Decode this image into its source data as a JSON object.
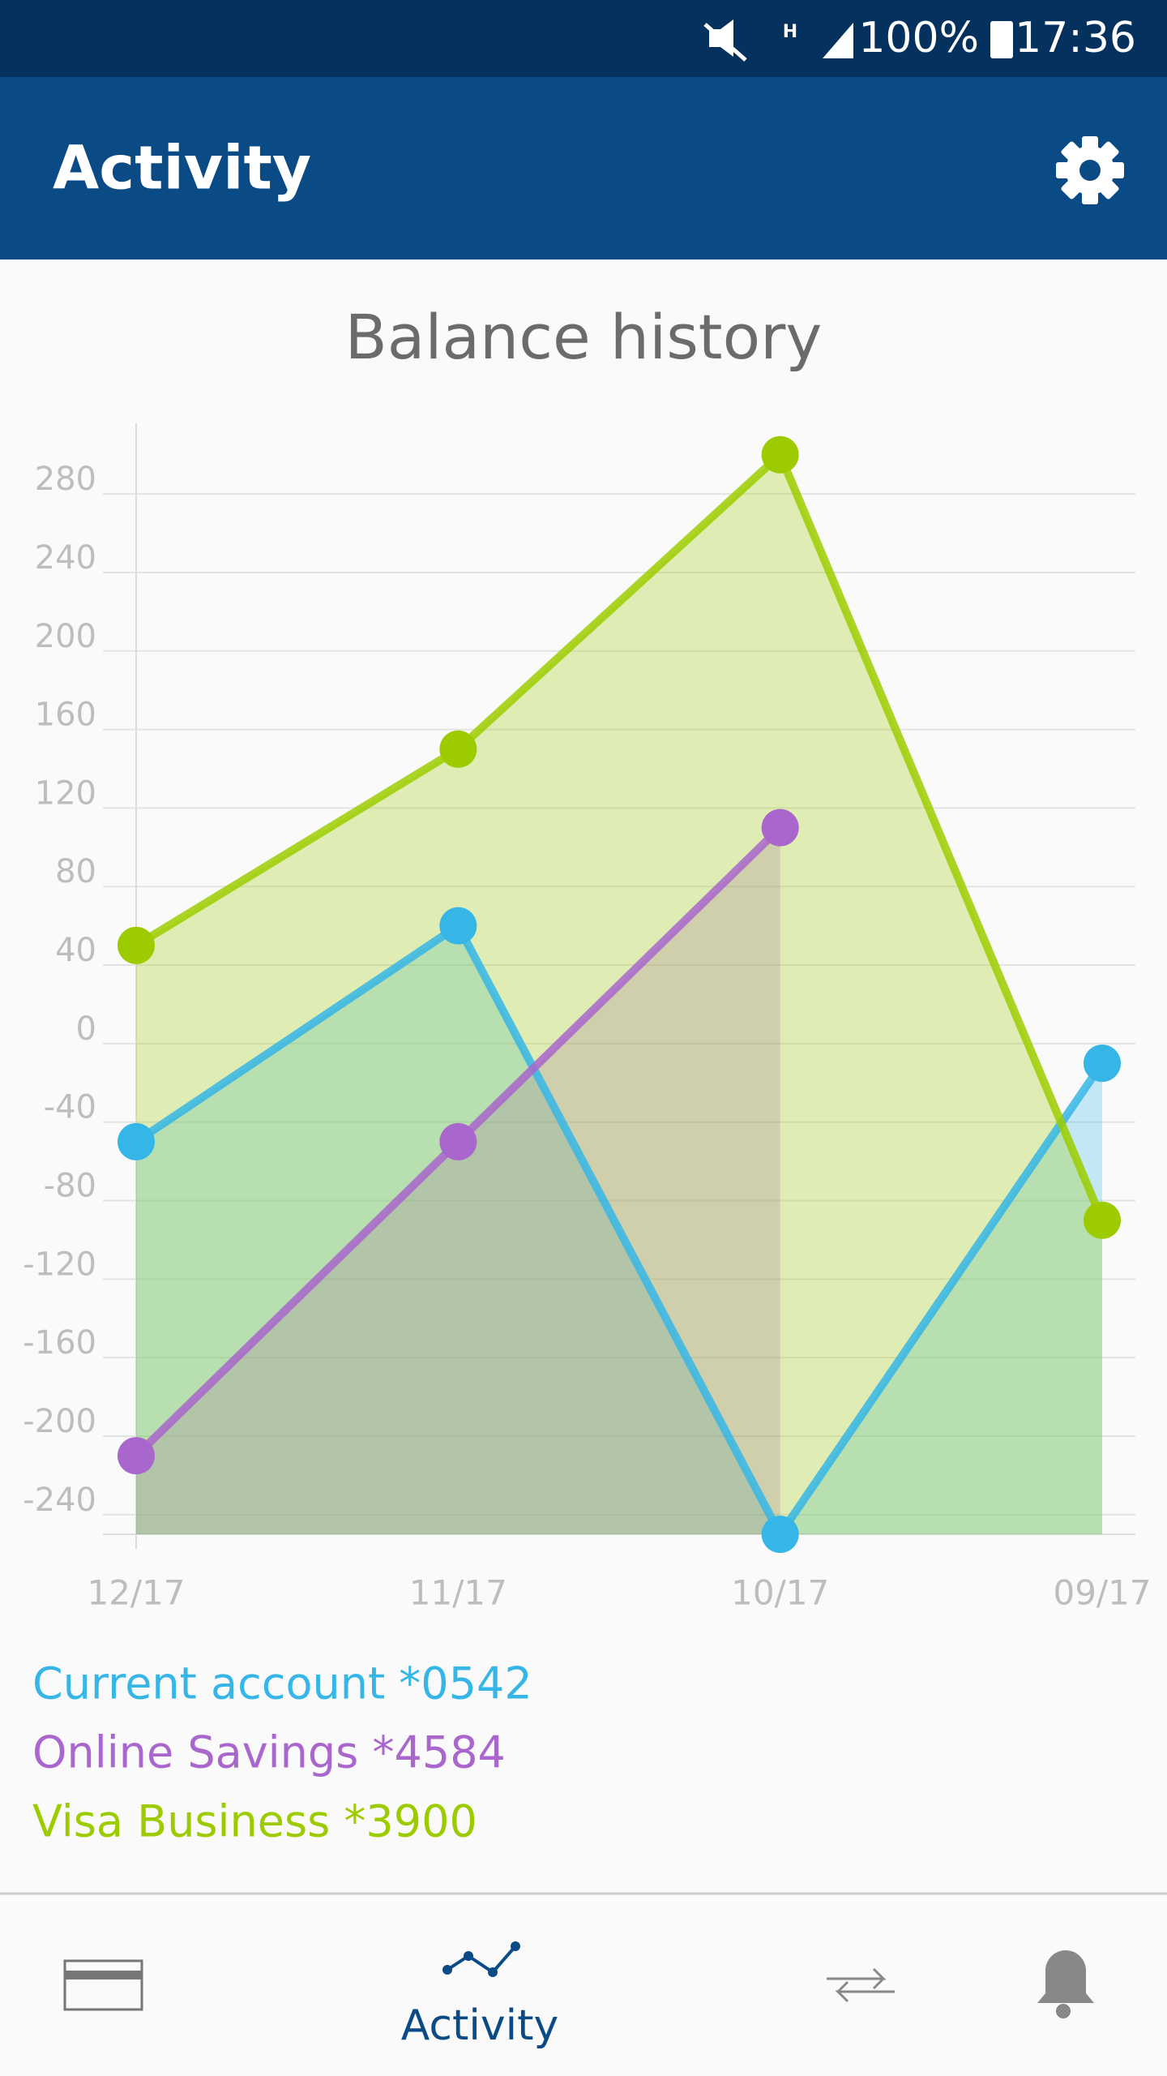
{
  "status_bar": {
    "battery": "100%",
    "time": "17:36"
  },
  "app_bar": {
    "title": "Activity"
  },
  "chart_data": {
    "type": "line",
    "title": "Balance history",
    "categories": [
      "12/17",
      "11/17",
      "10/17",
      "09/17"
    ],
    "series": [
      {
        "name": "Current account *0542",
        "color": "#36b6e6",
        "values": [
          -50,
          60,
          -250,
          -10
        ]
      },
      {
        "name": "Online Savings *4584",
        "color": "#a966cc",
        "values": [
          -210,
          -50,
          110,
          null
        ]
      },
      {
        "name": "Visa Business *3900",
        "color": "#9ccc00",
        "values": [
          50,
          150,
          300,
          -90
        ]
      }
    ],
    "ylim": [
      -250,
      316
    ],
    "yticks": [
      -240,
      -200,
      -160,
      -120,
      -80,
      -40,
      0,
      40,
      80,
      120,
      160,
      200,
      240,
      280
    ],
    "grid": true,
    "area": true
  },
  "nav": {
    "active_label": "Activity"
  }
}
